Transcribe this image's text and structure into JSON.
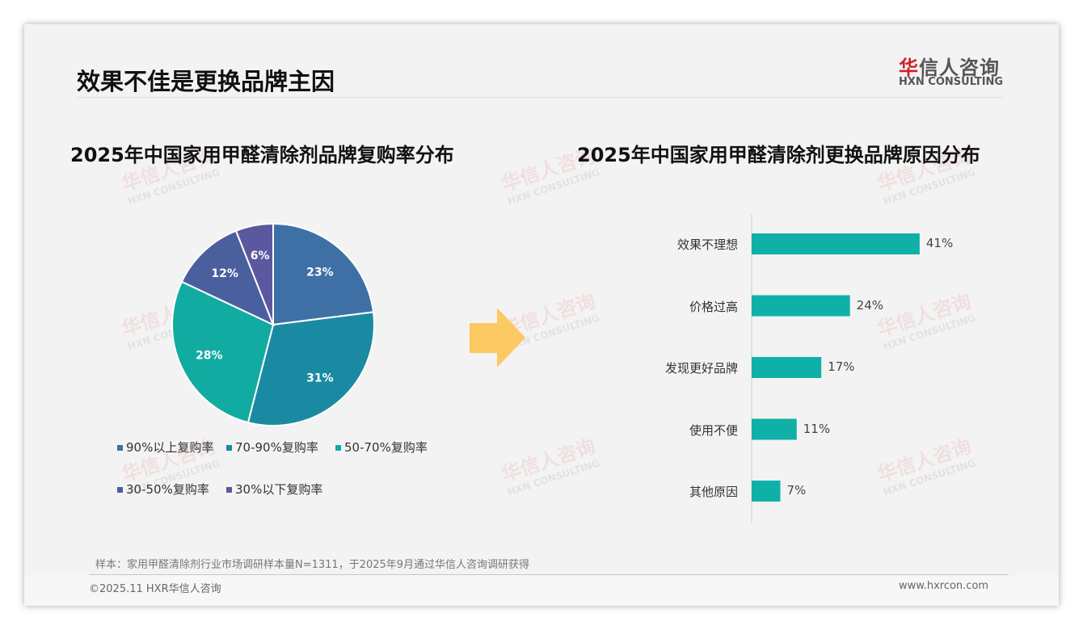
{
  "header": {
    "title": "效果不佳是更换品牌主因",
    "logo_cn_red": "华",
    "logo_cn_rest": "信人咨询",
    "logo_en": "HXN CONSULTING"
  },
  "watermark": {
    "cn": "华信人咨询",
    "en": "HXN CONSULTING"
  },
  "colors": {
    "bar": "#0fb0a7",
    "arrow": "#fcc862"
  },
  "chart_data": [
    {
      "type": "pie",
      "title": "2025年中国家用甲醛清除剂品牌复购率分布",
      "slices": [
        {
          "name": "90%以上复购率",
          "value": 23,
          "label": "23%",
          "color": "#3e70a6"
        },
        {
          "name": "70-90%复购率",
          "value": 31,
          "label": "31%",
          "color": "#1a8aa3"
        },
        {
          "name": "50-70%复购率",
          "value": 28,
          "label": "28%",
          "color": "#12aba1"
        },
        {
          "name": "30-50%复购率",
          "value": 12,
          "label": "12%",
          "color": "#4a5f9e"
        },
        {
          "name": "30%以下复购率",
          "value": 6,
          "label": "6%",
          "color": "#5c589f"
        }
      ],
      "legend": "bottom"
    },
    {
      "type": "bar",
      "orientation": "horizontal",
      "title": "2025年中国家用甲醛清除剂更换品牌原因分布",
      "categories": [
        "效果不理想",
        "价格过高",
        "发现更好品牌",
        "使用不便",
        "其他原因"
      ],
      "values": [
        41,
        24,
        17,
        11,
        7
      ],
      "labels": [
        "41%",
        "24%",
        "17%",
        "11%",
        "7%"
      ],
      "xlim": [
        0,
        50
      ]
    }
  ],
  "footer": {
    "note": "样本：家用甲醛清除剂行业市场调研样本量N=1311，于2025年9月通过华信人咨询调研获得",
    "copyright": "©2025.11 HXR华信人咨询",
    "site": "www.hxrcon.com"
  }
}
